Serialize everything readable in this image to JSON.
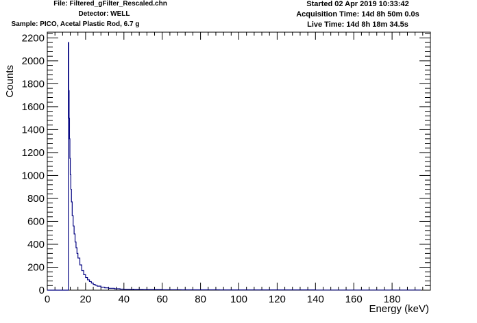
{
  "header": {
    "file": "File: Filtered_gFilter_Rescaled.chn",
    "detector": "Detector: WELL",
    "sample": "Sample: PICO, Acetal Plastic Rod, 6.7 g",
    "started": "Started 02 Apr 2019 10:33:42",
    "acquisition": "Acquisition Time: 14d 8h 50m 0.0s",
    "live": "Live Time: 14d 8h 18m 34.5s"
  },
  "colors": {
    "line": "#000080",
    "axis": "#000000"
  },
  "chart_data": {
    "type": "line",
    "title": "",
    "xlabel": "Energy (keV)",
    "ylabel": "Counts",
    "xlim": [
      0,
      200
    ],
    "ylim": [
      0,
      2250
    ],
    "x_ticks": [
      0,
      20,
      40,
      60,
      80,
      100,
      120,
      140,
      160,
      180
    ],
    "y_ticks": [
      0,
      200,
      400,
      600,
      800,
      1000,
      1200,
      1400,
      1600,
      1800,
      2000,
      2200
    ],
    "grid": false,
    "series": [
      {
        "x": [
          0,
          10.9,
          11.0,
          11.2,
          11.4,
          11.6,
          11.8,
          12.0,
          12.3,
          12.6,
          13.0,
          13.5,
          14.0,
          14.5,
          15.0,
          15.5,
          16.0,
          17.0,
          18.0,
          19.0,
          20.0,
          21.0,
          22.0,
          23.0,
          24.0,
          25.0,
          26.0,
          28.0,
          30.0,
          32.0,
          35.0,
          38.0,
          40.0,
          45.0,
          50.0,
          60.0,
          70.0,
          80.0,
          90.0,
          100.0,
          120.0,
          140.0,
          160.0,
          180.0,
          195.0
        ],
        "y": [
          0,
          0,
          2160,
          1740,
          1500,
          1320,
          1150,
          1010,
          880,
          770,
          650,
          560,
          490,
          420,
          370,
          320,
          280,
          220,
          170,
          135,
          110,
          90,
          75,
          62,
          50,
          42,
          35,
          26,
          20,
          16,
          12,
          9,
          8,
          6,
          5,
          4,
          3,
          3,
          2,
          2,
          2,
          1,
          1,
          1,
          1
        ]
      }
    ]
  }
}
